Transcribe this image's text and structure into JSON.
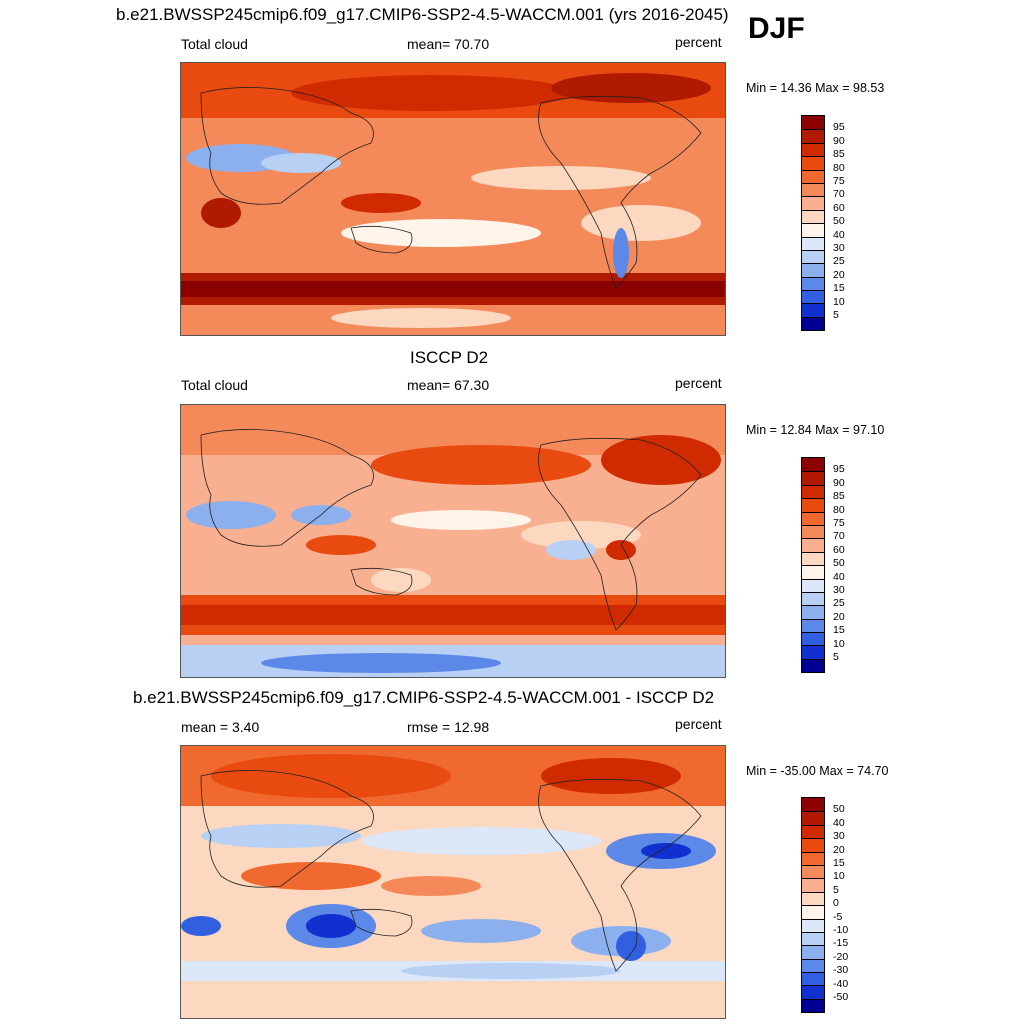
{
  "season": "DJF",
  "panels": [
    {
      "title": "b.e21.BWSSP245cmip6.f09_g17.CMIP6-SSP2-4.5-WACCM.001 (yrs 2016-2045)",
      "left": "Total cloud",
      "center": "mean=  70.70",
      "right": "percent",
      "minmax": "Min =  14.36 Max =  98.53",
      "scale": "abs"
    },
    {
      "title": "ISCCP D2",
      "left": "Total cloud",
      "center": "mean=  67.30",
      "right": "percent",
      "minmax": "Min =  12.84 Max =  97.10",
      "scale": "abs"
    },
    {
      "title": "b.e21.BWSSP245cmip6.f09_g17.CMIP6-SSP2-4.5-WACCM.001 - ISCCP D2",
      "left": "mean =   3.40",
      "center": "rmse =  12.98",
      "right": "percent",
      "minmax": "Min = -35.00 Max =  74.70",
      "scale": "diff"
    }
  ],
  "colorbars": {
    "abs": {
      "labels": [
        "95",
        "90",
        "85",
        "80",
        "75",
        "70",
        "60",
        "50",
        "40",
        "30",
        "25",
        "20",
        "15",
        "10",
        "5"
      ],
      "colors": [
        "#8b0000",
        "#b01a00",
        "#d02a00",
        "#e84a10",
        "#f06a30",
        "#f48a5a",
        "#f8b090",
        "#fcd8c0",
        "#fff4ea",
        "#dce8f8",
        "#b8d0f4",
        "#8cb0ee",
        "#5c88e8",
        "#3060e0",
        "#1030d0",
        "#000090"
      ]
    },
    "diff": {
      "labels": [
        "50",
        "40",
        "30",
        "20",
        "15",
        "10",
        "5",
        "0",
        "-5",
        "-10",
        "-15",
        "-20",
        "-30",
        "-40",
        "-50"
      ],
      "colors": [
        "#8b0000",
        "#b01a00",
        "#d02a00",
        "#e84a10",
        "#f06a30",
        "#f48a5a",
        "#f8b090",
        "#fcd8c0",
        "#fff4ea",
        "#dce8f8",
        "#b8d0f4",
        "#8cb0ee",
        "#5c88e8",
        "#3060e0",
        "#1030d0",
        "#000090"
      ]
    }
  }
}
